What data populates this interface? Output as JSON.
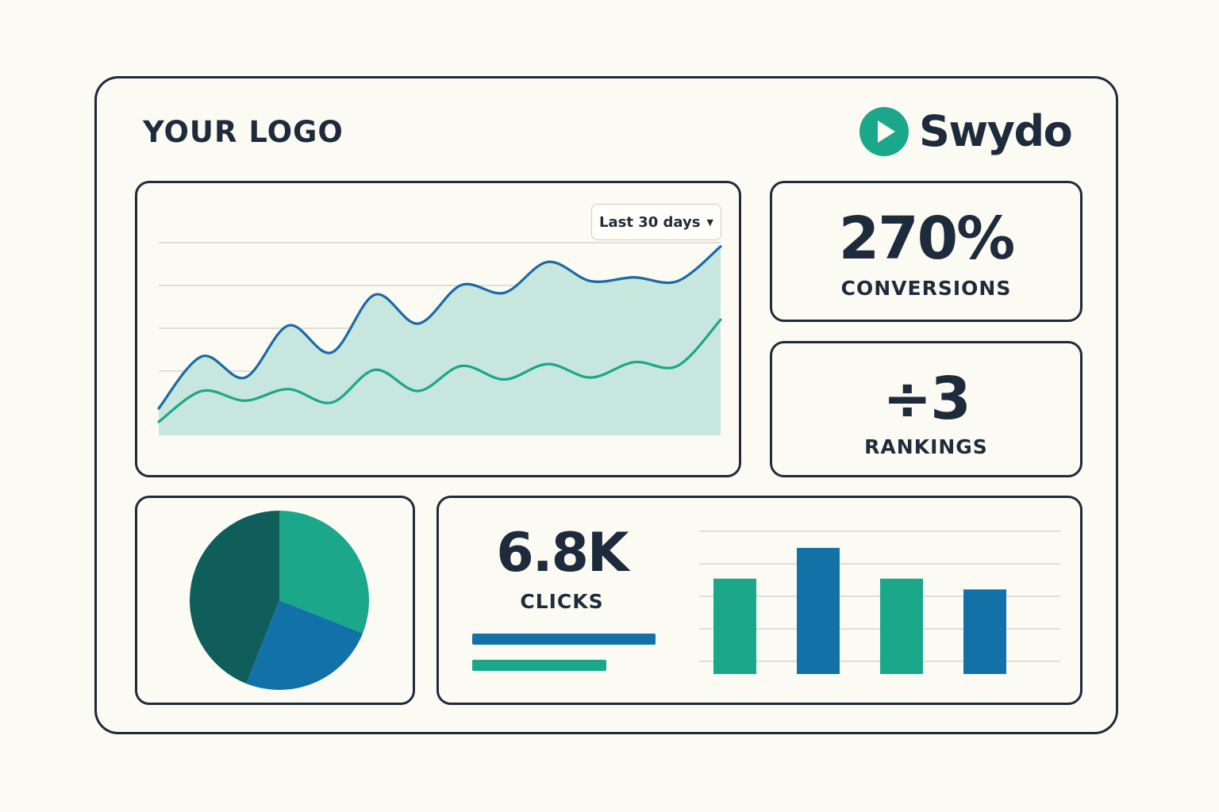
{
  "header": {
    "logo_placeholder": "YOUR LOGO",
    "brand_name": "Swydo",
    "brand_icon": "play-circle-icon",
    "brand_color": "#1aa78a"
  },
  "colors": {
    "ink": "#1e2b3c",
    "teal": "#1aa78a",
    "blue": "#1272a8",
    "dark_teal": "#0f5e5b",
    "area_fill": "#c7e6de"
  },
  "line_card": {
    "date_range": "Last 30 days",
    "dropdown_icon": "caret-down-icon",
    "chart_data": {
      "type": "area",
      "x": [
        0,
        1,
        2,
        3,
        4,
        5,
        6,
        7,
        8,
        9,
        10,
        11,
        12,
        13
      ],
      "series": [
        {
          "color": "#1a6aa6",
          "values": [
            0.14,
            0.41,
            0.3,
            0.57,
            0.43,
            0.73,
            0.58,
            0.78,
            0.74,
            0.9,
            0.8,
            0.82,
            0.8,
            0.98
          ]
        },
        {
          "color": "#1aa78a",
          "values": [
            0.07,
            0.23,
            0.18,
            0.24,
            0.17,
            0.34,
            0.23,
            0.36,
            0.29,
            0.37,
            0.3,
            0.38,
            0.36,
            0.6
          ]
        }
      ],
      "ylim": [
        0,
        1
      ],
      "grid": true,
      "gridlines": 5
    }
  },
  "conversions": {
    "value": "270%",
    "label": "CONVERSIONS"
  },
  "rankings": {
    "value": "÷3",
    "label": "RANKINGS"
  },
  "pie_card": {
    "chart_data": {
      "type": "pie",
      "values": [
        31,
        25,
        44
      ],
      "colors": [
        "#1aa78a",
        "#1272a8",
        "#0f5e5b"
      ],
      "start_angle_deg": 0
    }
  },
  "clicks": {
    "value": "6.8K",
    "label": "CLICKS",
    "progress": [
      {
        "fraction": 1.0,
        "color": "#1272a8"
      },
      {
        "fraction": 0.73,
        "color": "#1aa78a"
      }
    ],
    "chart_data": {
      "type": "bar",
      "values": [
        0.62,
        0.82,
        0.62,
        0.55
      ],
      "colors": [
        "#1aa78a",
        "#1272a8",
        "#1aa78a",
        "#1272a8"
      ],
      "ylim": [
        0,
        1
      ],
      "grid": true,
      "gridlines": 5
    }
  }
}
